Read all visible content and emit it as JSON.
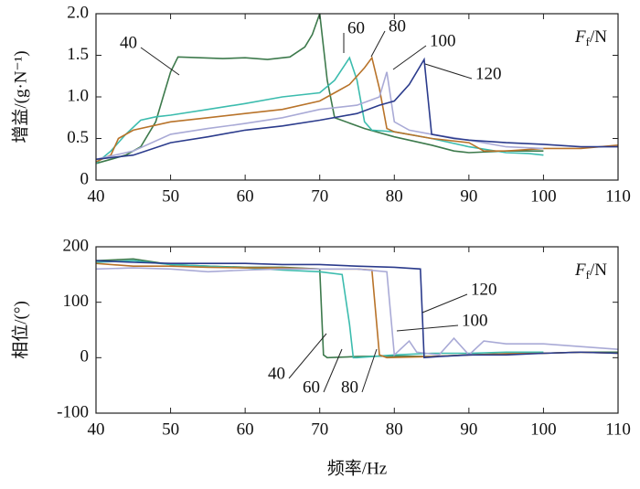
{
  "chart_data": [
    {
      "type": "line",
      "ylabel": "增益/(g·N⁻¹)",
      "legend_title": {
        "symbol": "F",
        "subscript": "f",
        "unit": "/N"
      },
      "xlim": [
        40,
        110
      ],
      "xticks": [
        40,
        50,
        60,
        70,
        80,
        90,
        100,
        110
      ],
      "ylim": [
        0,
        2
      ],
      "yticks": [
        0,
        0.5,
        {
          "value": 1,
          "label": "1.0"
        },
        1.5,
        {
          "value": 2,
          "label": "2.0"
        }
      ],
      "series": [
        {
          "name": "40",
          "color": "#3d7a4c",
          "x": [
            40,
            42,
            44,
            46,
            48,
            49,
            50,
            51,
            54,
            57,
            60,
            63,
            66,
            68,
            69,
            70,
            71,
            72,
            76,
            80,
            85,
            88,
            90,
            95,
            100
          ],
          "values": [
            0.2,
            0.25,
            0.3,
            0.4,
            0.7,
            1.0,
            1.3,
            1.48,
            1.47,
            1.46,
            1.47,
            1.45,
            1.48,
            1.6,
            1.75,
            2.0,
            1.2,
            0.75,
            0.62,
            0.52,
            0.42,
            0.35,
            0.33,
            0.35,
            0.35
          ]
        },
        {
          "name": "60",
          "color": "#3cbcae",
          "x": [
            40,
            42,
            44,
            46,
            48,
            50,
            55,
            60,
            65,
            70,
            72,
            74,
            75,
            76,
            77,
            80,
            85,
            90,
            95,
            98,
            100
          ],
          "values": [
            0.2,
            0.35,
            0.55,
            0.72,
            0.76,
            0.78,
            0.85,
            0.92,
            1.0,
            1.05,
            1.2,
            1.47,
            1.2,
            0.7,
            0.6,
            0.58,
            0.5,
            0.4,
            0.33,
            0.32,
            0.3
          ]
        },
        {
          "name": "80",
          "color": "#b8732a",
          "x": [
            40,
            42,
            43,
            45,
            50,
            55,
            60,
            65,
            70,
            72,
            74,
            76,
            77,
            78,
            79,
            80,
            85,
            90,
            92,
            95,
            100,
            105,
            110
          ],
          "values": [
            0.22,
            0.3,
            0.5,
            0.6,
            0.7,
            0.75,
            0.8,
            0.85,
            0.95,
            1.05,
            1.15,
            1.35,
            1.47,
            1.1,
            0.62,
            0.58,
            0.5,
            0.45,
            0.35,
            0.35,
            0.38,
            0.38,
            0.42
          ]
        },
        {
          "name": "100",
          "color": "#a9aad6",
          "x": [
            40,
            45,
            50,
            55,
            60,
            65,
            70,
            75,
            78,
            79,
            80,
            82,
            85,
            90,
            95,
            100
          ],
          "values": [
            0.25,
            0.35,
            0.55,
            0.62,
            0.68,
            0.75,
            0.85,
            0.9,
            1.0,
            1.3,
            0.7,
            0.6,
            0.55,
            0.48,
            0.4,
            0.38
          ]
        },
        {
          "name": "120",
          "color": "#2b3b8c",
          "x": [
            40,
            45,
            50,
            55,
            60,
            65,
            70,
            75,
            78,
            80,
            82,
            84,
            85,
            88,
            90,
            95,
            100,
            105,
            110
          ],
          "values": [
            0.25,
            0.3,
            0.45,
            0.52,
            0.6,
            0.65,
            0.72,
            0.8,
            0.9,
            0.95,
            1.15,
            1.45,
            0.55,
            0.5,
            0.48,
            0.45,
            0.43,
            0.4,
            0.4
          ]
        }
      ]
    },
    {
      "type": "line",
      "ylabel": "相位/(°)",
      "xlabel": "频率/Hz",
      "legend_title": {
        "symbol": "F",
        "subscript": "f",
        "unit": "/N"
      },
      "xlim": [
        40,
        110
      ],
      "xticks": [
        40,
        50,
        60,
        70,
        80,
        90,
        100,
        110
      ],
      "ylim": [
        -100,
        200
      ],
      "yticks": [
        -100,
        0,
        100,
        200
      ],
      "series": [
        {
          "name": "40",
          "color": "#3d7a4c",
          "x": [
            40,
            45,
            50,
            55,
            60,
            65,
            70,
            70.5,
            71,
            75,
            80,
            85,
            90,
            95,
            100,
            105,
            110
          ],
          "values": [
            175,
            178,
            168,
            165,
            163,
            163,
            160,
            5,
            0,
            2,
            3,
            2,
            5,
            7,
            8,
            10,
            10
          ]
        },
        {
          "name": "60",
          "color": "#3cbcae",
          "x": [
            40,
            45,
            50,
            55,
            60,
            65,
            70,
            73,
            74,
            74.5,
            75,
            80,
            85,
            90,
            95,
            100
          ],
          "values": [
            172,
            175,
            168,
            165,
            162,
            158,
            155,
            150,
            60,
            0,
            0,
            5,
            8,
            8,
            10,
            10
          ]
        },
        {
          "name": "80",
          "color": "#b8732a",
          "x": [
            40,
            45,
            50,
            55,
            60,
            65,
            70,
            75,
            77,
            78,
            79,
            85,
            90,
            95,
            100,
            105,
            110
          ],
          "values": [
            170,
            165,
            165,
            163,
            162,
            162,
            160,
            160,
            158,
            5,
            0,
            2,
            5,
            7,
            8,
            10,
            8
          ]
        },
        {
          "name": "100",
          "color": "#a9aad6",
          "x": [
            40,
            45,
            50,
            55,
            60,
            65,
            70,
            75,
            79,
            80,
            82,
            83,
            86,
            88,
            90,
            92,
            95,
            100,
            105,
            110
          ],
          "values": [
            160,
            162,
            160,
            155,
            158,
            160,
            160,
            160,
            155,
            5,
            30,
            10,
            5,
            35,
            5,
            30,
            25,
            25,
            20,
            15
          ]
        },
        {
          "name": "120",
          "color": "#2b3b8c",
          "x": [
            40,
            45,
            50,
            55,
            60,
            65,
            70,
            75,
            80,
            83.5,
            84,
            86,
            90,
            95,
            100,
            105,
            110
          ],
          "values": [
            175,
            172,
            170,
            170,
            170,
            168,
            168,
            165,
            163,
            160,
            0,
            2,
            5,
            5,
            8,
            10,
            8
          ]
        }
      ]
    }
  ]
}
